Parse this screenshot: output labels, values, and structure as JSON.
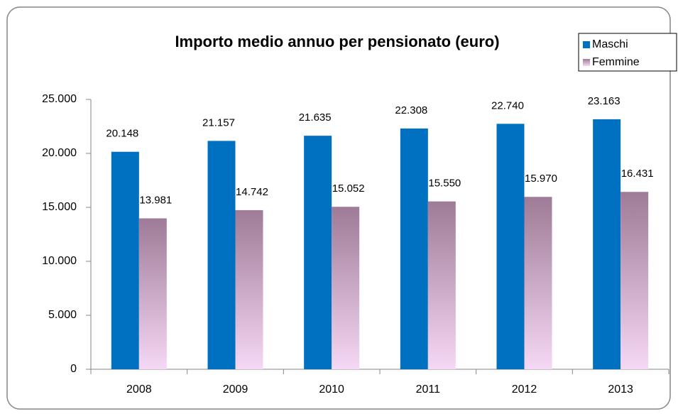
{
  "chart_data": {
    "type": "bar",
    "title": "Importo medio annuo per pensionato (euro)",
    "categories": [
      "2008",
      "2009",
      "2010",
      "2011",
      "2012",
      "2013"
    ],
    "series": [
      {
        "name": "Maschi",
        "color": "#0070c0",
        "values": [
          20148,
          21157,
          21635,
          22308,
          22740,
          23163
        ],
        "value_labels": [
          "20.148",
          "21.157",
          "21.635",
          "22.308",
          "22.740",
          "23.163"
        ]
      },
      {
        "name": "Femmine",
        "color": "#9e7b97",
        "values": [
          13981,
          14742,
          15052,
          15550,
          15970,
          16431
        ],
        "value_labels": [
          "13.981",
          "14.742",
          "15.052",
          "15.550",
          "15.970",
          "16.431"
        ]
      }
    ],
    "ylim": [
      0,
      25000
    ],
    "yticks": [
      0,
      {
        "value": 5000,
        "label": "5.000"
      },
      {
        "value": 10000,
        "label": "10.000"
      },
      {
        "value": 15000,
        "label": "15.000"
      },
      {
        "value": 20000,
        "label": "20.000"
      },
      {
        "value": 25000,
        "label": "25.000"
      }
    ],
    "grid": false,
    "legend": "top-right"
  }
}
